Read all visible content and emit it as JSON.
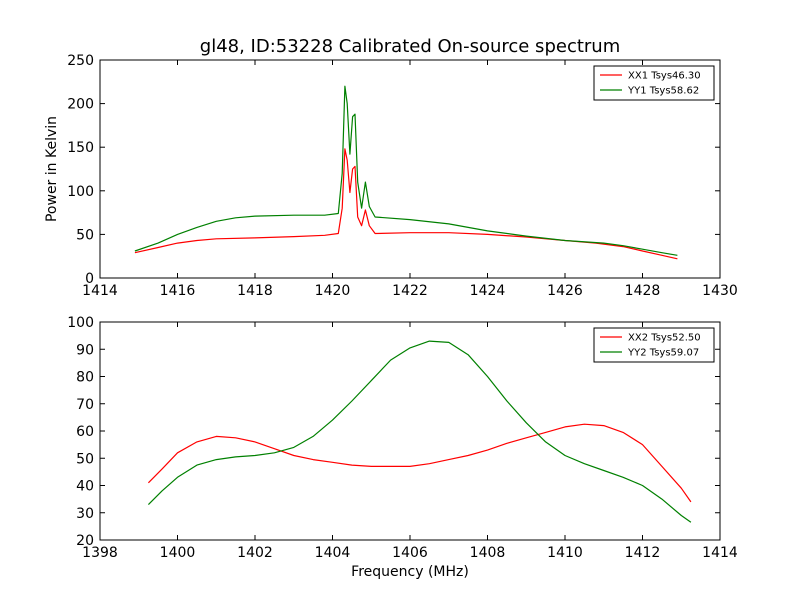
{
  "colors": {
    "xx": "#ff0000",
    "yy": "#008000",
    "axes": "#000000",
    "background": "#ffffff"
  },
  "chart_data": [
    {
      "type": "line",
      "title": "gl48, ID:53228 Calibrated On-source spectrum",
      "xlabel": "",
      "ylabel": "Power in Kelvin",
      "xlim": [
        1414,
        1430
      ],
      "ylim": [
        0,
        250
      ],
      "xticks": [
        1414,
        1416,
        1418,
        1420,
        1422,
        1424,
        1426,
        1428,
        1430
      ],
      "yticks": [
        0,
        50,
        100,
        150,
        200,
        250
      ],
      "grid": false,
      "legend_position": "top-right",
      "series": [
        {
          "name": "XX1 Tsys46.30",
          "color": "#ff0000",
          "points": [
            [
              1414.9,
              29
            ],
            [
              1415.5,
              35
            ],
            [
              1416.0,
              40
            ],
            [
              1416.5,
              43
            ],
            [
              1417.0,
              45
            ],
            [
              1418.0,
              46
            ],
            [
              1419.0,
              47.5
            ],
            [
              1419.8,
              49
            ],
            [
              1420.15,
              51
            ],
            [
              1420.25,
              80
            ],
            [
              1420.32,
              148
            ],
            [
              1420.38,
              135
            ],
            [
              1420.45,
              98
            ],
            [
              1420.52,
              125
            ],
            [
              1420.58,
              128
            ],
            [
              1420.65,
              70
            ],
            [
              1420.75,
              60
            ],
            [
              1420.85,
              78
            ],
            [
              1420.95,
              60
            ],
            [
              1421.1,
              51
            ],
            [
              1422.0,
              52
            ],
            [
              1423.0,
              52
            ],
            [
              1424.0,
              50
            ],
            [
              1425.0,
              47
            ],
            [
              1426.0,
              43
            ],
            [
              1426.8,
              40
            ],
            [
              1427.5,
              36
            ],
            [
              1428.0,
              31
            ],
            [
              1428.5,
              26
            ],
            [
              1428.9,
              22
            ]
          ]
        },
        {
          "name": "YY1 Tsys58.62",
          "color": "#008000",
          "points": [
            [
              1414.9,
              31
            ],
            [
              1415.5,
              40
            ],
            [
              1416.0,
              50
            ],
            [
              1416.5,
              58
            ],
            [
              1417.0,
              65
            ],
            [
              1417.5,
              69
            ],
            [
              1418.0,
              71
            ],
            [
              1419.0,
              72
            ],
            [
              1419.8,
              72
            ],
            [
              1420.15,
              74
            ],
            [
              1420.25,
              120
            ],
            [
              1420.32,
              220
            ],
            [
              1420.38,
              200
            ],
            [
              1420.45,
              142
            ],
            [
              1420.52,
              185
            ],
            [
              1420.58,
              188
            ],
            [
              1420.65,
              110
            ],
            [
              1420.75,
              80
            ],
            [
              1420.85,
              110
            ],
            [
              1420.95,
              82
            ],
            [
              1421.1,
              70
            ],
            [
              1422.0,
              67
            ],
            [
              1423.0,
              62
            ],
            [
              1424.0,
              54
            ],
            [
              1425.0,
              48
            ],
            [
              1426.0,
              43
            ],
            [
              1427.0,
              40
            ],
            [
              1427.5,
              37
            ],
            [
              1428.0,
              33
            ],
            [
              1428.5,
              29
            ],
            [
              1428.9,
              26
            ]
          ]
        }
      ]
    },
    {
      "type": "line",
      "title": "",
      "xlabel": "Frequency (MHz)",
      "ylabel": "",
      "xlim": [
        1398,
        1414
      ],
      "ylim": [
        20,
        100
      ],
      "xticks": [
        1398,
        1400,
        1402,
        1404,
        1406,
        1408,
        1410,
        1412,
        1414
      ],
      "yticks": [
        20,
        30,
        40,
        50,
        60,
        70,
        80,
        90,
        100
      ],
      "grid": false,
      "legend_position": "top-right",
      "series": [
        {
          "name": "XX2 Tsys52.50",
          "color": "#ff0000",
          "points": [
            [
              1399.25,
              41
            ],
            [
              1399.6,
              46
            ],
            [
              1400.0,
              52
            ],
            [
              1400.5,
              56
            ],
            [
              1401.0,
              58
            ],
            [
              1401.5,
              57.5
            ],
            [
              1402.0,
              56
            ],
            [
              1402.5,
              53.5
            ],
            [
              1403.0,
              51
            ],
            [
              1403.5,
              49.5
            ],
            [
              1404.0,
              48.5
            ],
            [
              1404.5,
              47.5
            ],
            [
              1405.0,
              47
            ],
            [
              1405.5,
              47
            ],
            [
              1406.0,
              47
            ],
            [
              1406.5,
              48
            ],
            [
              1407.0,
              49.5
            ],
            [
              1407.5,
              51
            ],
            [
              1408.0,
              53
            ],
            [
              1408.5,
              55.5
            ],
            [
              1409.0,
              57.5
            ],
            [
              1409.5,
              59.5
            ],
            [
              1410.0,
              61.5
            ],
            [
              1410.5,
              62.5
            ],
            [
              1411.0,
              62
            ],
            [
              1411.5,
              59.5
            ],
            [
              1412.0,
              55
            ],
            [
              1412.5,
              47
            ],
            [
              1413.0,
              39
            ],
            [
              1413.25,
              34
            ]
          ]
        },
        {
          "name": "YY2 Tsys59.07",
          "color": "#008000",
          "points": [
            [
              1399.25,
              33
            ],
            [
              1399.6,
              38
            ],
            [
              1400.0,
              43
            ],
            [
              1400.5,
              47.5
            ],
            [
              1401.0,
              49.5
            ],
            [
              1401.5,
              50.5
            ],
            [
              1402.0,
              51
            ],
            [
              1402.5,
              52
            ],
            [
              1403.0,
              54
            ],
            [
              1403.5,
              58
            ],
            [
              1404.0,
              64
            ],
            [
              1404.5,
              71
            ],
            [
              1405.0,
              78.5
            ],
            [
              1405.5,
              86
            ],
            [
              1406.0,
              90.5
            ],
            [
              1406.5,
              93
            ],
            [
              1407.0,
              92.5
            ],
            [
              1407.5,
              88
            ],
            [
              1408.0,
              80
            ],
            [
              1408.5,
              71
            ],
            [
              1409.0,
              63
            ],
            [
              1409.5,
              56
            ],
            [
              1410.0,
              51
            ],
            [
              1410.5,
              48
            ],
            [
              1411.0,
              45.5
            ],
            [
              1411.5,
              43
            ],
            [
              1412.0,
              40
            ],
            [
              1412.5,
              35
            ],
            [
              1413.0,
              29
            ],
            [
              1413.25,
              26.5
            ]
          ]
        }
      ]
    }
  ]
}
